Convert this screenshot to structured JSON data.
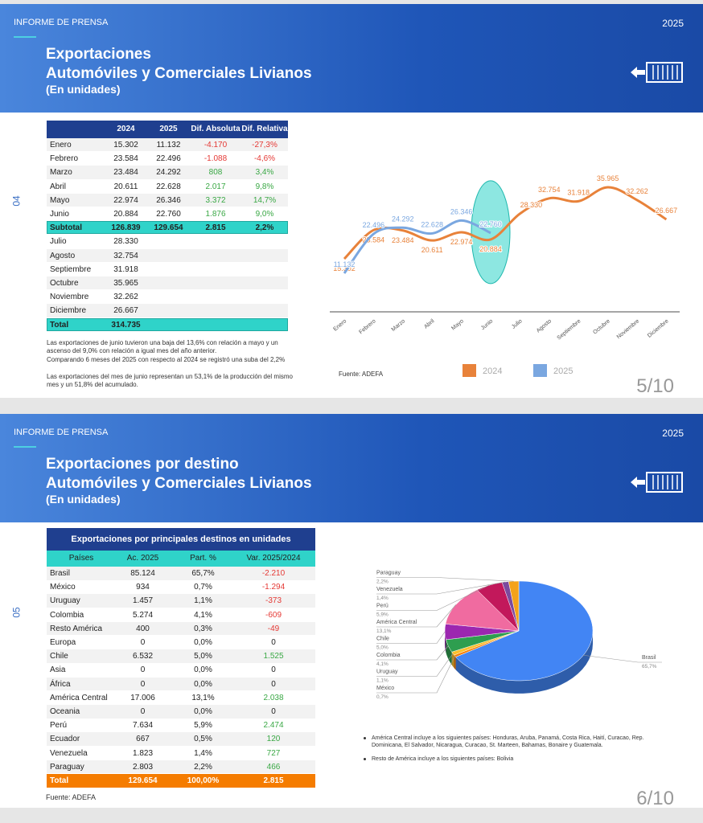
{
  "slides": [
    {
      "header": {
        "label": "INFORME DE PRENSA",
        "year": "2025",
        "title": [
          "Exportaciones",
          "Automóviles y Comerciales Livianos"
        ],
        "subtitle": "(En unidades)"
      },
      "section": "04",
      "table": {
        "columns": [
          "2024",
          "2025",
          "Dif. Absoluta",
          "Dif. Relativa"
        ],
        "rows": [
          [
            "Enero",
            "15.302",
            "11.132",
            "-4.170",
            "-27,3%"
          ],
          [
            "Febrero",
            "23.584",
            "22.496",
            "-1.088",
            "-4,6%"
          ],
          [
            "Marzo",
            "23.484",
            "24.292",
            "808",
            "3,4%"
          ],
          [
            "Abril",
            "20.611",
            "22.628",
            "2.017",
            "9,8%"
          ],
          [
            "Mayo",
            "22.974",
            "26.346",
            "3.372",
            "14,7%"
          ],
          [
            "Junio",
            "20.884",
            "22.760",
            "1.876",
            "9,0%"
          ],
          [
            "Subtotal",
            "126.839",
            "129.654",
            "2.815",
            "2,2%"
          ],
          [
            "Julio",
            "28.330"
          ],
          [
            "Agosto",
            "32.754"
          ],
          [
            "Septiembre",
            "31.918"
          ],
          [
            "Octubre",
            "35.965"
          ],
          [
            "Noviembre",
            "32.262"
          ],
          [
            "Diciembre",
            "26.667"
          ],
          [
            "Total",
            "314.735"
          ]
        ]
      },
      "notes": [
        "Las exportaciones de junio tuvieron una baja del 13,6% con relación a mayo y un ascenso del 9,0% con relación a igual mes del año anterior.",
        "Comparando 6 meses del 2025 con respecto al 2024 se registró una suba del 2,2%",
        "Las exportaciones del mes de junio representan un 53,1% de la producción del mismo mes y un 51,8% del acumulado."
      ],
      "source": "Fuente: ADEFA",
      "page": "5/10"
    },
    {
      "header": {
        "label": "INFORME DE PRENSA",
        "year": "2025",
        "title": [
          "Exportaciones por destino",
          "Automóviles y Comerciales Livianos"
        ],
        "subtitle": "(En unidades)"
      },
      "section": "05",
      "table": {
        "title": "Exportaciones por principales destinos en unidades",
        "columns": [
          "Países",
          "Ac. 2025",
          "Part. %",
          "Var. 2025/2024"
        ],
        "rows": [
          [
            "Brasil",
            "85.124",
            "65,7%",
            "-2.210"
          ],
          [
            "México",
            "934",
            "0,7%",
            "-1.294"
          ],
          [
            "Uruguay",
            "1.457",
            "1,1%",
            "-373"
          ],
          [
            "Colombia",
            "5.274",
            "4,1%",
            "-609"
          ],
          [
            "Resto América",
            "400",
            "0,3%",
            "-49"
          ],
          [
            "Europa",
            "0",
            "0,0%",
            "0"
          ],
          [
            "Chile",
            "6.532",
            "5,0%",
            "1.525"
          ],
          [
            "Asia",
            "0",
            "0,0%",
            "0"
          ],
          [
            "África",
            "0",
            "0,0%",
            "0"
          ],
          [
            "América Central",
            "17.006",
            "13,1%",
            "2.038"
          ],
          [
            "Oceania",
            "0",
            "0,0%",
            "0"
          ],
          [
            "Perú",
            "7.634",
            "5,9%",
            "2.474"
          ],
          [
            "Ecuador",
            "667",
            "0,5%",
            "120"
          ],
          [
            "Venezuela",
            "1.823",
            "1,4%",
            "727"
          ],
          [
            "Paraguay",
            "2.803",
            "2,2%",
            "466"
          ],
          [
            "Total",
            "129.654",
            "100,00%",
            "2.815"
          ]
        ]
      },
      "notes": [
        "América Central incluye a los siguientes países: Honduras, Aruba, Panamá,  Costa Rica, Haití, Curacao, Rep. Dominicana, El Salvador, Nicaragua, Curacao, St. Marteen, Bahamas, Bonaire y Guatemala.",
        "Resto de América incluye a los siguientes países: Bolivia"
      ],
      "source": "Fuente: ADEFA",
      "page": "6/10"
    }
  ],
  "chart_data": [
    {
      "type": "line",
      "categories": [
        "Enero",
        "Febrero",
        "Marzo",
        "Abril",
        "Mayo",
        "Junio",
        "Julio",
        "Agosto",
        "Septiembre",
        "Octubre",
        "Noviembre",
        "Diciembre"
      ],
      "ylim": [
        0,
        45000
      ],
      "legend": "bottom",
      "series": [
        {
          "name": "2024",
          "color": "#e8823a",
          "values": [
            15302,
            23584,
            23484,
            20611,
            22974,
            20884,
            28330,
            32754,
            31918,
            35965,
            32262,
            26667
          ],
          "value_labels": [
            "15.302",
            "23.584",
            "23.484",
            "20.611",
            "22.974",
            "20.884",
            "28.330",
            "32.754",
            "31.918",
            "35.965",
            "32.262",
            "26.667"
          ]
        },
        {
          "name": "2025",
          "color": "#7aa7e0",
          "values": [
            11132,
            22496,
            24292,
            22628,
            26346,
            22760,
            null,
            null,
            null,
            null,
            null,
            null
          ],
          "value_labels": [
            "11.132",
            "22.496",
            "24.292",
            "22.628",
            "26.346",
            "22.760",
            null,
            null,
            null,
            null,
            null,
            null
          ]
        }
      ]
    },
    {
      "type": "pie",
      "categories": [
        "Brasil",
        "México",
        "Uruguay",
        "Colombia",
        "Chile",
        "América Central",
        "Perú",
        "Venezuela",
        "Paraguay"
      ],
      "values": [
        65.7,
        0.7,
        1.1,
        4.1,
        5.0,
        13.1,
        5.9,
        1.4,
        2.2
      ],
      "value_labels": [
        "65,7%",
        "0,7%",
        "1,1%",
        "4,1%",
        "5,0%",
        "13,1%",
        "5,9%",
        "1,4%",
        "2,2%"
      ],
      "colors": [
        "#4285f4",
        "#f57c00",
        "#fbc02d",
        "#2e9e4f",
        "#9c27b0",
        "#f06ba0",
        "#c2185b",
        "#7b4a9e",
        "#f4a21b"
      ]
    }
  ]
}
